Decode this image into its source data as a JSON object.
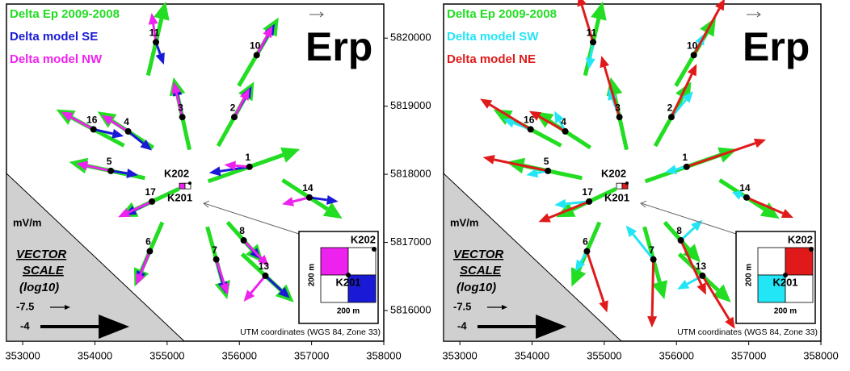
{
  "chart_data": [
    {
      "type": "vector",
      "title": "Erp",
      "xlim": [
        352775,
        358000
      ],
      "ylim": [
        5815550,
        5820500
      ],
      "xticks": [
        353000,
        354000,
        355000,
        356000,
        357000,
        358000
      ],
      "yticks": [
        5816000,
        5817000,
        5818000,
        5819000,
        5820000
      ],
      "stations": {
        "names": [
          "11",
          "10",
          "3",
          "2",
          "16",
          "4",
          "1",
          "5",
          "14",
          "17",
          "8",
          "6",
          "7",
          "13"
        ],
        "x": [
          354845,
          356240,
          355210,
          355930,
          353980,
          354460,
          356140,
          354220,
          356970,
          354790,
          356060,
          354760,
          355680,
          356360
        ],
        "y": [
          5819940,
          5819750,
          5818840,
          5818840,
          5818660,
          5818630,
          5818110,
          5818050,
          5817660,
          5817600,
          5817030,
          5816870,
          5816750,
          5816510
        ]
      },
      "series": [
        {
          "name": "Delta Ep 2009-2008",
          "color": "#22dd22",
          "u": [
            243,
            553,
            -221,
            497,
            -939,
            -773,
            1271,
            -1050,
            829,
            -829,
            497,
            -387,
            276,
            718
          ],
          "v": [
            1086,
            1006,
            1064,
            945,
            532,
            532,
            473,
            236,
            -567,
            -414,
            -591,
            -945,
            -1064,
            -709
          ]
        },
        {
          "name": "Delta model SE",
          "color": "#1a1ad6",
          "u": [
            110,
            250,
            -100,
            240,
            420,
            330,
            -560,
            380,
            400,
            -380,
            240,
            -180,
            130,
            340
          ],
          "v": [
            -330,
            460,
            480,
            450,
            -100,
            -280,
            -90,
            -60,
            -60,
            -200,
            -280,
            -460,
            -500,
            -330
          ]
        },
        {
          "name": "Delta model NW",
          "color": "#ee22ee",
          "u": [
            -60,
            220,
            -120,
            210,
            -450,
            -370,
            -350,
            -480,
            -380,
            -470,
            350,
            -190,
            160,
            -300
          ],
          "v": [
            430,
            430,
            520,
            420,
            260,
            240,
            30,
            110,
            -100,
            -230,
            -380,
            -500,
            -520,
            -380
          ]
        }
      ],
      "site": {
        "labels": [
          "K202",
          "K201"
        ],
        "x": 355270,
        "y": 5817810
      },
      "inset": {
        "labels": [
          "K202",
          "K201"
        ],
        "size_label": "200 m"
      },
      "scale": {
        "unit": "mV/m",
        "title": [
          "VECTOR",
          "SCALE"
        ],
        "subtitle": "(log10)",
        "values": [
          -7.5,
          -4
        ]
      },
      "footnote": "UTM coordinates (WGS 84, Zone 33)"
    },
    {
      "type": "vector",
      "title": "Erp",
      "xlim": [
        352775,
        358000
      ],
      "ylim": [
        5815550,
        5820500
      ],
      "xticks": [
        353000,
        354000,
        355000,
        356000,
        357000,
        358000
      ],
      "stations": {
        "names": [
          "11",
          "10",
          "3",
          "2",
          "16",
          "4",
          "1",
          "5",
          "14",
          "17",
          "8",
          "6",
          "7",
          "13"
        ],
        "x": [
          354845,
          356240,
          355210,
          355930,
          353980,
          354460,
          356140,
          354220,
          356970,
          354790,
          356060,
          354760,
          355680,
          356360
        ],
        "y": [
          5819940,
          5819750,
          5818840,
          5818840,
          5818660,
          5818630,
          5818110,
          5818050,
          5817660,
          5817600,
          5817030,
          5816870,
          5816750,
          5816510
        ]
      },
      "series": [
        {
          "name": "Delta Ep 2009-2008",
          "color": "#22dd22",
          "u": [
            243,
            553,
            -221,
            497,
            -939,
            -773,
            1271,
            -1050,
            829,
            -829,
            497,
            -387,
            276,
            718
          ],
          "v": [
            1086,
            1006,
            1064,
            945,
            532,
            532,
            473,
            236,
            -567,
            -414,
            -591,
            -945,
            -1064,
            -709
          ]
        },
        {
          "name": "Delta model SW",
          "color": "#22e5f5",
          "u": [
            -60,
            150,
            -150,
            300,
            -380,
            -150,
            -300,
            -300,
            -200,
            -480,
            300,
            -160,
            -380,
            -350
          ],
          "v": [
            -400,
            320,
            420,
            380,
            150,
            300,
            -80,
            -60,
            80,
            -50,
            300,
            -300,
            500,
            -200
          ]
        },
        {
          "name": "Delta model NE",
          "color": "#e01a1a",
          "u": [
            -200,
            430,
            -250,
            350,
            -700,
            -500,
            1100,
            -900,
            650,
            -700,
            350,
            280,
            -20,
            450
          ],
          "v": [
            700,
            830,
            900,
            780,
            450,
            300,
            400,
            200,
            -300,
            -300,
            -800,
            -900,
            -1000,
            -780
          ]
        }
      ],
      "site": {
        "labels": [
          "K202",
          "K201"
        ],
        "x": 355270,
        "y": 5817810
      },
      "inset": {
        "labels": [
          "K202",
          "K201"
        ],
        "size_label": "200 m"
      },
      "scale": {
        "unit": "mV/m",
        "title": [
          "VECTOR",
          "SCALE"
        ],
        "subtitle": "(log10)",
        "values": [
          -7.5,
          -4
        ]
      },
      "footnote": "UTM coordinates (WGS 84, Zone 33)"
    }
  ]
}
